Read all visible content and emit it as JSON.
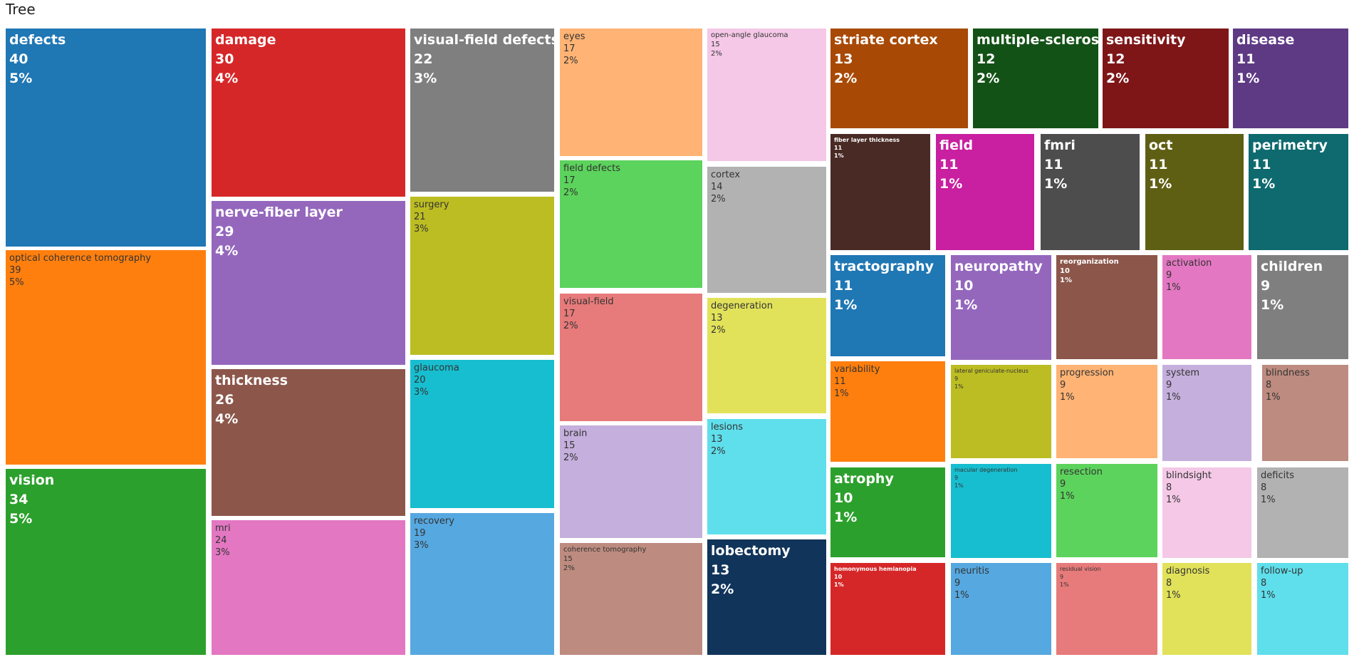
{
  "chart_data": {
    "type": "treemap",
    "title": "Tree",
    "items": [
      {
        "label": "defects",
        "value": 40,
        "percent": "5%",
        "color": "#1f77b4",
        "text": "light"
      },
      {
        "label": "optical coherence tomography",
        "value": 39,
        "percent": "5%",
        "color": "#ff7f0e",
        "text": "dark"
      },
      {
        "label": "vision",
        "value": 34,
        "percent": "5%",
        "color": "#2ca02c",
        "text": "light"
      },
      {
        "label": "damage",
        "value": 30,
        "percent": "4%",
        "color": "#d62728",
        "text": "light"
      },
      {
        "label": "nerve-fiber layer",
        "value": 29,
        "percent": "4%",
        "color": "#9467bd",
        "text": "light"
      },
      {
        "label": "thickness",
        "value": 26,
        "percent": "4%",
        "color": "#8c564b",
        "text": "light"
      },
      {
        "label": "mri",
        "value": 24,
        "percent": "3%",
        "color": "#e377c2",
        "text": "dark"
      },
      {
        "label": "visual-field defects",
        "value": 22,
        "percent": "3%",
        "color": "#7f7f7f",
        "text": "light"
      },
      {
        "label": "surgery",
        "value": 21,
        "percent": "3%",
        "color": "#bcbd22",
        "text": "dark"
      },
      {
        "label": "glaucoma",
        "value": 20,
        "percent": "3%",
        "color": "#17becf",
        "text": "dark"
      },
      {
        "label": "recovery",
        "value": 19,
        "percent": "3%",
        "color": "#56a8e0",
        "text": "dark"
      },
      {
        "label": "eyes",
        "value": 17,
        "percent": "2%",
        "color": "#ffb374",
        "text": "dark"
      },
      {
        "label": "field defects",
        "value": 17,
        "percent": "2%",
        "color": "#5cd35c",
        "text": "dark"
      },
      {
        "label": "visual-field",
        "value": 17,
        "percent": "2%",
        "color": "#e77a7a",
        "text": "dark"
      },
      {
        "label": "brain",
        "value": 15,
        "percent": "2%",
        "color": "#c5afdc",
        "text": "dark"
      },
      {
        "label": "coherence tomography",
        "value": 15,
        "percent": "2%",
        "color": "#bd8b7f",
        "text": "dark"
      },
      {
        "label": "open-angle glaucoma",
        "value": 15,
        "percent": "2%",
        "color": "#f4c8e6",
        "text": "dark"
      },
      {
        "label": "cortex",
        "value": 14,
        "percent": "2%",
        "color": "#b2b2b2",
        "text": "dark"
      },
      {
        "label": "degeneration",
        "value": 13,
        "percent": "2%",
        "color": "#e1e25a",
        "text": "dark"
      },
      {
        "label": "lesions",
        "value": 13,
        "percent": "2%",
        "color": "#5fdfeb",
        "text": "dark"
      },
      {
        "label": "lobectomy",
        "value": 13,
        "percent": "2%",
        "color": "#11345a",
        "text": "light"
      },
      {
        "label": "striate cortex",
        "value": 13,
        "percent": "2%",
        "color": "#a84a05",
        "text": "light"
      },
      {
        "label": "multiple-sclerosis",
        "value": 12,
        "percent": "2%",
        "color": "#135216",
        "text": "light"
      },
      {
        "label": "sensitivity",
        "value": 12,
        "percent": "2%",
        "color": "#7e1618",
        "text": "light"
      },
      {
        "label": "disease",
        "value": 11,
        "percent": "1%",
        "color": "#5e3984",
        "text": "light"
      },
      {
        "label": "fiber layer thickness",
        "value": 11,
        "percent": "1%",
        "color": "#492a24",
        "text": "light"
      },
      {
        "label": "field",
        "value": 11,
        "percent": "1%",
        "color": "#c91fa1",
        "text": "light"
      },
      {
        "label": "fmri",
        "value": 11,
        "percent": "1%",
        "color": "#4d4d4d",
        "text": "light"
      },
      {
        "label": "oct",
        "value": 11,
        "percent": "1%",
        "color": "#5f5f14",
        "text": "light"
      },
      {
        "label": "perimetry",
        "value": 11,
        "percent": "1%",
        "color": "#0e6a6e",
        "text": "light"
      },
      {
        "label": "tractography",
        "value": 11,
        "percent": "1%",
        "color": "#1f77b4",
        "text": "light"
      },
      {
        "label": "variability",
        "value": 11,
        "percent": "1%",
        "color": "#ff7f0e",
        "text": "dark"
      },
      {
        "label": "atrophy",
        "value": 10,
        "percent": "1%",
        "color": "#2ca02c",
        "text": "light"
      },
      {
        "label": "homonymous hemianopia",
        "value": 10,
        "percent": "1%",
        "color": "#d62728",
        "text": "light"
      },
      {
        "label": "neuropathy",
        "value": 10,
        "percent": "1%",
        "color": "#9467bd",
        "text": "light"
      },
      {
        "label": "lateral geniculate-nucleus",
        "value": 9,
        "percent": "1%",
        "color": "#bcbd22",
        "text": "dark"
      },
      {
        "label": "macular degeneration",
        "value": 9,
        "percent": "1%",
        "color": "#17becf",
        "text": "dark"
      },
      {
        "label": "neuritis",
        "value": 9,
        "percent": "1%",
        "color": "#56a8e0",
        "text": "dark"
      },
      {
        "label": "reorganization",
        "value": 10,
        "percent": "1%",
        "color": "#8c564b",
        "text": "light"
      },
      {
        "label": "progression",
        "value": 9,
        "percent": "1%",
        "color": "#ffb374",
        "text": "dark"
      },
      {
        "label": "resection",
        "value": 9,
        "percent": "1%",
        "color": "#5cd35c",
        "text": "dark"
      },
      {
        "label": "residual vision",
        "value": 9,
        "percent": "1%",
        "color": "#e77a7a",
        "text": "dark"
      },
      {
        "label": "activation",
        "value": 9,
        "percent": "1%",
        "color": "#e377c2",
        "text": "dark"
      },
      {
        "label": "system",
        "value": 9,
        "percent": "1%",
        "color": "#c5afdc",
        "text": "dark"
      },
      {
        "label": "blindsight",
        "value": 8,
        "percent": "1%",
        "color": "#f4c8e6",
        "text": "dark"
      },
      {
        "label": "diagnosis",
        "value": 8,
        "percent": "1%",
        "color": "#e1e25a",
        "text": "dark"
      },
      {
        "label": "children",
        "value": 9,
        "percent": "1%",
        "color": "#7f7f7f",
        "text": "light"
      },
      {
        "label": "blindness",
        "value": 8,
        "percent": "1%",
        "color": "#bd8b7f",
        "text": "dark"
      },
      {
        "label": "deficits",
        "value": 8,
        "percent": "1%",
        "color": "#b2b2b2",
        "text": "dark"
      },
      {
        "label": "follow-up",
        "value": 8,
        "percent": "1%",
        "color": "#5fdfeb",
        "text": "dark"
      }
    ]
  }
}
